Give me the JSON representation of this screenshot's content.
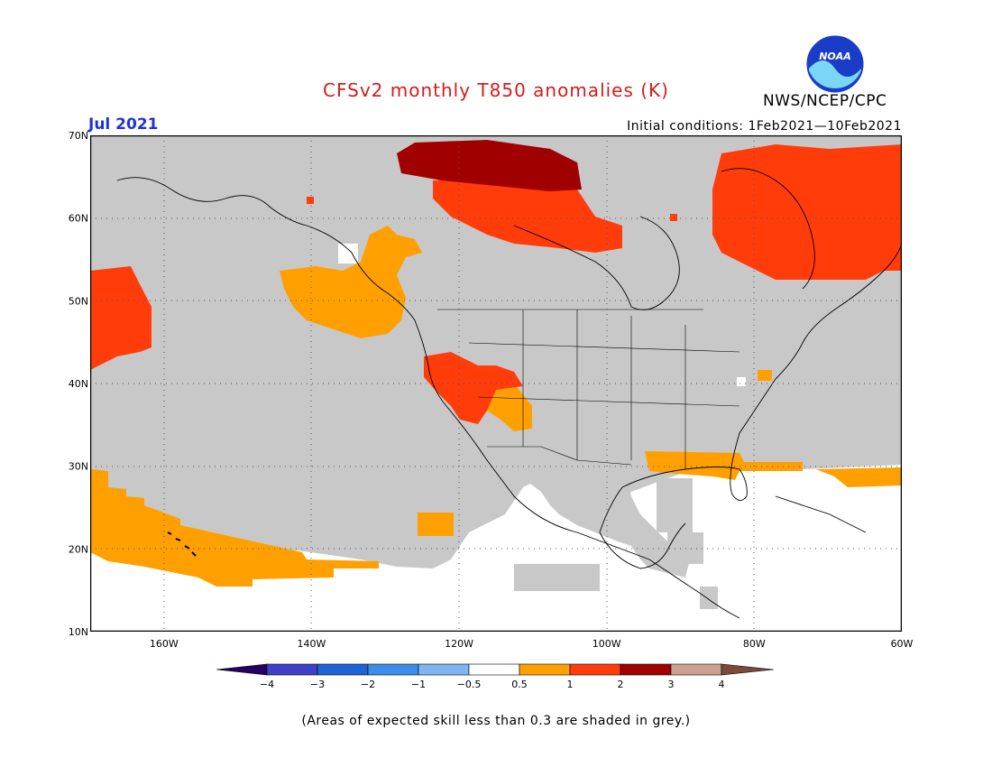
{
  "header": {
    "title": "CFSv2 monthly T850 anomalies (K)",
    "agency": "NWS/NCEP/CPC",
    "logo_text": "NOAA",
    "month": "Jul 2021",
    "initial_conditions": "Initial conditions: 1Feb2021—10Feb2021"
  },
  "map": {
    "lat_labels": [
      "70N",
      "60N",
      "50N",
      "40N",
      "30N",
      "20N",
      "10N"
    ],
    "lon_labels": [
      "160W",
      "140W",
      "120W",
      "100W",
      "80W",
      "60W"
    ],
    "lat_range": [
      10,
      70
    ],
    "lon_range": [
      -170,
      -60
    ],
    "skill_mask_color": "#c8c8c8"
  },
  "colorbar": {
    "tick_labels": [
      "−4",
      "−3",
      "−2",
      "−1",
      "−0.5",
      "0.5",
      "1",
      "2",
      "3",
      "4"
    ],
    "colors": [
      "#24005f",
      "#3f3fc8",
      "#1f63d6",
      "#3d8cea",
      "#7fb5f0",
      "#ffffff",
      "#ffa000",
      "#ff3c0a",
      "#a10000",
      "#caa190",
      "#7a4a3a"
    ]
  },
  "footer": {
    "note": "(Areas of expected skill less than 0.3 are shaded in grey.)"
  }
}
